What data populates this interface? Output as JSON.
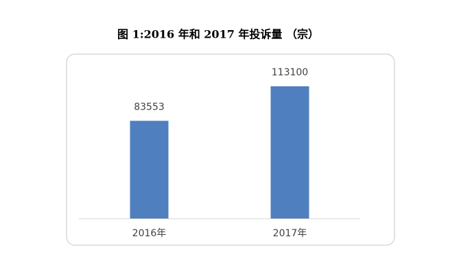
{
  "chart_data": {
    "type": "bar",
    "title": "图 1:2016 年和 2017 年投诉量 （宗）",
    "categories": [
      "2016年",
      "2017年"
    ],
    "values": [
      83553,
      113100
    ],
    "color": "#4f7fbe"
  }
}
